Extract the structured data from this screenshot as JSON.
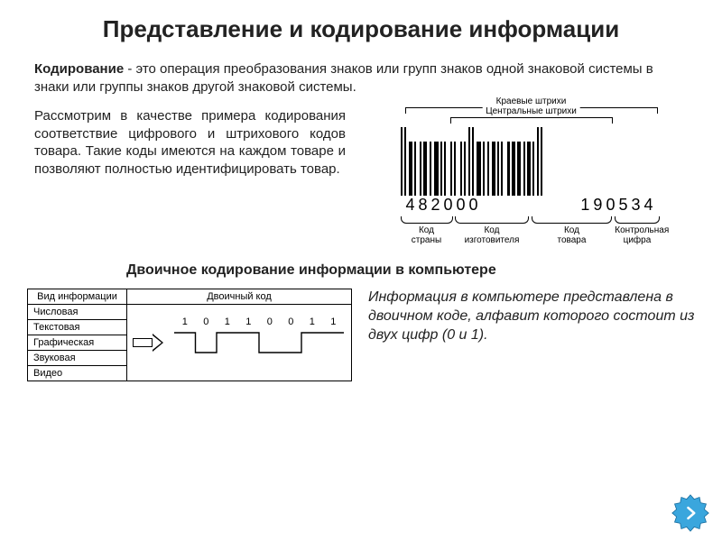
{
  "title": "Представление и кодирование информации",
  "definition_term": "Кодирование",
  "definition_body": " - это операция преобразования знаков или групп знаков одной знаковой системы в знаки или группы знаков другой знаковой системы.",
  "example_paragraph": "Рассмотрим в качестве примера кодирования соответствие цифрового и штрихового кодов товара. Такие коды имеются на каждом товаре и позволяют полностью идентифицировать товар.",
  "barcode": {
    "label_outer": "Краевые штрихи",
    "label_inner": "Центральные штрихи",
    "digits_left": "482000",
    "digits_right": "190534",
    "bar_pattern": [
      {
        "w": 2,
        "g": true
      },
      {
        "s": 2
      },
      {
        "w": 2,
        "g": true
      },
      {
        "s": 3
      },
      {
        "w": 4
      },
      {
        "s": 2
      },
      {
        "w": 2
      },
      {
        "s": 4
      },
      {
        "w": 2
      },
      {
        "s": 2
      },
      {
        "w": 4
      },
      {
        "s": 3
      },
      {
        "w": 2
      },
      {
        "s": 3
      },
      {
        "w": 5
      },
      {
        "s": 2
      },
      {
        "w": 2
      },
      {
        "s": 2
      },
      {
        "w": 2
      },
      {
        "s": 5
      },
      {
        "w": 2
      },
      {
        "s": 2
      },
      {
        "w": 2
      },
      {
        "s": 5
      },
      {
        "w": 2
      },
      {
        "s": 2
      },
      {
        "w": 2
      },
      {
        "s": 3
      },
      {
        "w": 2,
        "g": true
      },
      {
        "s": 2
      },
      {
        "w": 2,
        "g": true
      },
      {
        "s": 3
      },
      {
        "w": 5
      },
      {
        "s": 2
      },
      {
        "w": 2
      },
      {
        "s": 3
      },
      {
        "w": 2
      },
      {
        "s": 3
      },
      {
        "w": 4
      },
      {
        "s": 2
      },
      {
        "w": 2
      },
      {
        "s": 2
      },
      {
        "w": 2
      },
      {
        "s": 5
      },
      {
        "w": 3
      },
      {
        "s": 2
      },
      {
        "w": 4
      },
      {
        "s": 2
      },
      {
        "w": 4
      },
      {
        "s": 3
      },
      {
        "w": 2
      },
      {
        "s": 2
      },
      {
        "w": 4
      },
      {
        "s": 2
      },
      {
        "w": 2
      },
      {
        "s": 3
      },
      {
        "w": 2,
        "g": true
      },
      {
        "s": 2
      },
      {
        "w": 2,
        "g": true
      }
    ],
    "groups": [
      {
        "label_line1": "Код",
        "label_line2": "страны",
        "left_pct": 0,
        "width_pct": 20
      },
      {
        "label_line1": "Код",
        "label_line2": "изготовителя",
        "left_pct": 21,
        "width_pct": 28
      },
      {
        "label_line1": "Код",
        "label_line2": "товара",
        "left_pct": 50,
        "width_pct": 31
      },
      {
        "label_line1": "Контрольная",
        "label_line2": "цифра",
        "left_pct": 82,
        "width_pct": 17
      }
    ],
    "colors": {
      "bar": "#000000",
      "bg": "#ffffff"
    }
  },
  "subheading": "Двоичное кодирование информации в компьютере",
  "table": {
    "header_type": "Вид информации",
    "header_code": "Двоичный код",
    "rows": [
      "Числовая",
      "Текстовая",
      "Графическая",
      "Звуковая",
      "Видео"
    ],
    "bits": [
      "1",
      "0",
      "1",
      "1",
      "0",
      "0",
      "1",
      "1"
    ],
    "wave_levels": [
      1,
      0,
      1,
      1,
      0,
      0,
      1,
      1
    ],
    "colors": {
      "line": "#000000",
      "bg": "#ffffff"
    }
  },
  "computer_text": "Информация в компьютере представлена в двоичном коде, алфавит которого состоит из двух цифр (0 и 1).",
  "nav": {
    "star_fill": "#3aa6dd",
    "star_stroke": "#1b6fa0",
    "arrow_color": "#ffffff"
  }
}
